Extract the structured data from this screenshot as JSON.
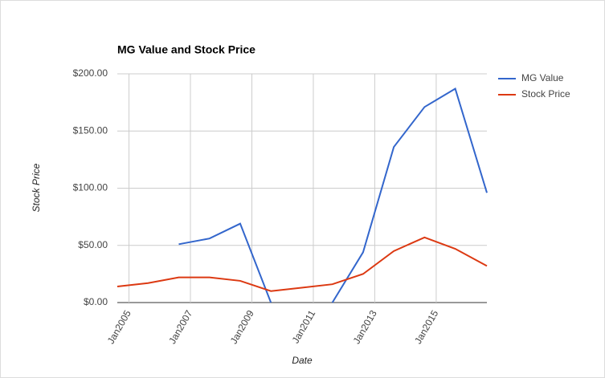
{
  "chart_data": {
    "type": "line",
    "title": "MG Value and Stock Price",
    "x_label": "Date",
    "y_label": "Stock Price",
    "x": [
      2004.62,
      2005.62,
      2006.62,
      2007.62,
      2008.62,
      2009.62,
      2010.62,
      2011.62,
      2012.62,
      2013.62,
      2014.62,
      2015.62,
      2016.65
    ],
    "series": [
      {
        "name": "MG Value",
        "color": "#3366cc",
        "values": [
          null,
          null,
          51,
          56,
          69,
          0,
          null,
          0,
          44,
          136,
          171,
          187,
          96
        ]
      },
      {
        "name": "Stock Price",
        "color": "#dc3912",
        "values": [
          14,
          17,
          22,
          22,
          19,
          10,
          13,
          16,
          25,
          45,
          57,
          47,
          32
        ]
      }
    ],
    "xlim": [
      2004.62,
      2016.65
    ],
    "xticks": [
      {
        "value": 2005,
        "label": "Jan2005"
      },
      {
        "value": 2007,
        "label": "Jan2007"
      },
      {
        "value": 2009,
        "label": "Jan2009"
      },
      {
        "value": 2011,
        "label": "Jan2011"
      },
      {
        "value": 2013,
        "label": "Jan2013"
      },
      {
        "value": 2015,
        "label": "Jan2015"
      }
    ],
    "ylim": [
      0,
      200
    ],
    "yticks": [
      {
        "value": 0,
        "label": "$0.00"
      },
      {
        "value": 50,
        "label": "$50.00"
      },
      {
        "value": 100,
        "label": "$100.00"
      },
      {
        "value": 150,
        "label": "$150.00"
      },
      {
        "value": 200,
        "label": "$200.00"
      }
    ],
    "grid": true,
    "legend": "right"
  }
}
